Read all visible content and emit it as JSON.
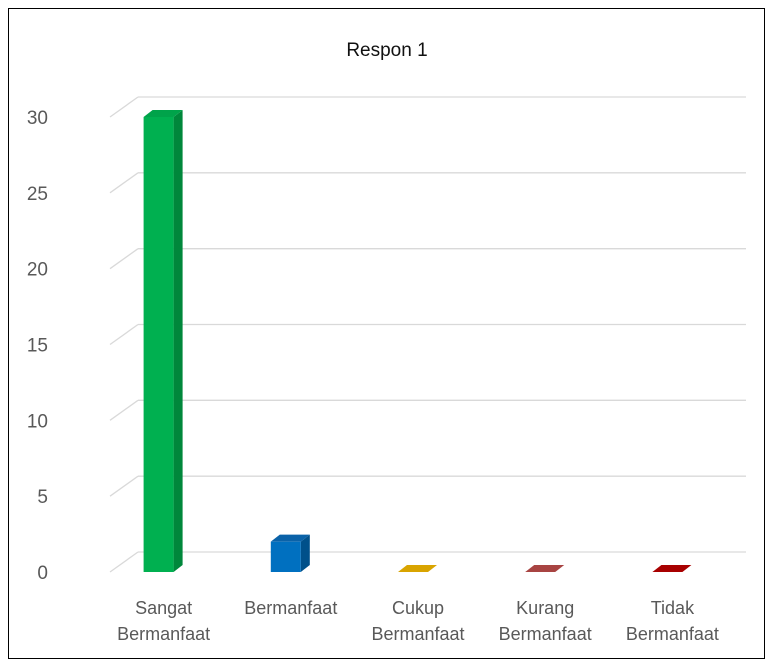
{
  "chart_data": {
    "type": "bar",
    "title": "Respon 1",
    "categories": [
      [
        "Sangat",
        "Bermanfaat"
      ],
      [
        "Bermanfaat"
      ],
      [
        "Cukup",
        "Bermanfaat"
      ],
      [
        "Kurang",
        "Bermanfaat"
      ],
      [
        "Tidak",
        "Bermanfaat"
      ]
    ],
    "values": [
      30,
      2,
      0,
      0,
      0
    ],
    "ylim": [
      0,
      30
    ],
    "yticks": [
      "0",
      "5",
      "10",
      "15",
      "20",
      "25",
      "30"
    ],
    "grid": true,
    "colors": [
      "#00b050",
      "#0070c0",
      "#bf9000",
      "#953735",
      "#8b0000"
    ],
    "side_colors": [
      "#00873b",
      "#00508a",
      "#8a6800",
      "#6b2625",
      "#5e0000"
    ],
    "top_colors": [
      "#00a34a",
      "#0a62a8",
      "#d9a400",
      "#a84442",
      "#a80000"
    ]
  }
}
